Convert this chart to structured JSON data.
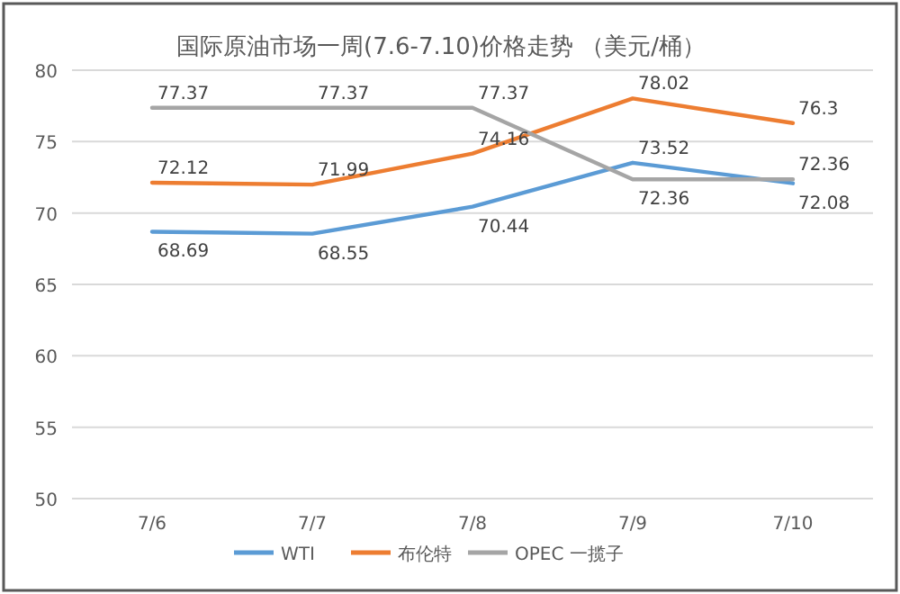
{
  "chart_data": {
    "type": "line",
    "title": "国际原油市场一周(7.6-7.10)价格走势 （美元/桶）",
    "categories": [
      "7/6",
      "7/7",
      "7/8",
      "7/9",
      "7/10"
    ],
    "series": [
      {
        "name": "WTI",
        "color": "#5b9bd5",
        "values": [
          68.69,
          68.55,
          70.44,
          73.52,
          72.08
        ]
      },
      {
        "name": "布伦特",
        "color": "#ed7d31",
        "values": [
          72.12,
          71.99,
          74.16,
          78.02,
          76.3
        ]
      },
      {
        "name": "OPEC 一揽子",
        "color": "#a5a5a5",
        "values": [
          77.37,
          77.37,
          77.37,
          72.36,
          72.36
        ]
      }
    ],
    "ylim": [
      50,
      80
    ],
    "yticks": [
      50,
      55,
      60,
      65,
      70,
      75,
      80
    ],
    "grid": "y",
    "legend": "bottom",
    "data_labels": true,
    "marker": "none",
    "line_style": "solid"
  }
}
